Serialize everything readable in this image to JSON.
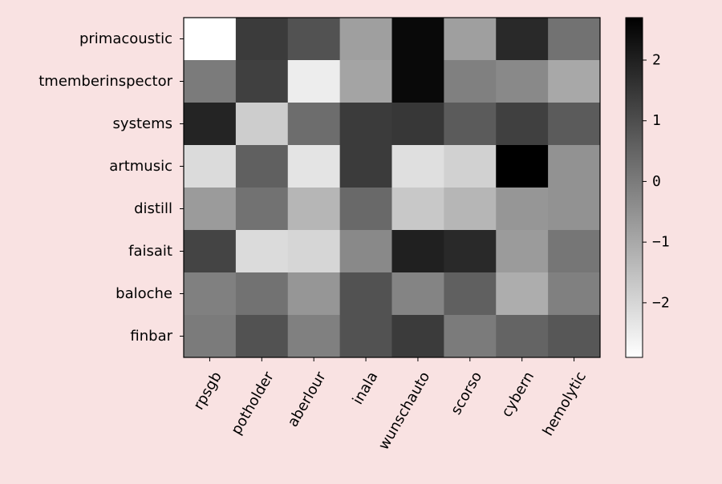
{
  "chart_data": {
    "type": "heatmap",
    "title": "",
    "xlabel": "",
    "ylabel": "",
    "colormap": "gray_r",
    "background": "#f9e2e2",
    "x_categories": [
      "rpsgb",
      "potholder",
      "aberlour",
      "inala",
      "wunschauto",
      "scorso",
      "cybern",
      "hemolytic"
    ],
    "y_categories": [
      "primacoustic",
      "tmemberinspector",
      "systems",
      "artmusic",
      "distill",
      "faisait",
      "baloche",
      "finbar"
    ],
    "values": [
      [
        -2.9,
        1.4,
        0.9,
        -0.8,
        2.5,
        -0.8,
        1.8,
        0.2
      ],
      [
        0.0,
        1.3,
        -2.5,
        -0.9,
        2.5,
        -0.1,
        -0.3,
        -1.0
      ],
      [
        1.9,
        -1.8,
        0.3,
        1.4,
        1.5,
        0.7,
        1.3,
        0.7
      ],
      [
        -2.1,
        0.6,
        -2.3,
        1.4,
        -2.2,
        -1.9,
        2.7,
        -0.5
      ],
      [
        -0.7,
        0.2,
        -1.3,
        0.4,
        -1.7,
        -1.3,
        -0.6,
        -0.5
      ],
      [
        1.2,
        -2.1,
        -2.0,
        -0.3,
        2.0,
        1.8,
        -0.7,
        0.1
      ],
      [
        -0.1,
        0.2,
        -0.6,
        0.9,
        -0.2,
        0.6,
        -1.1,
        -0.1
      ],
      [
        0.0,
        0.9,
        -0.1,
        0.9,
        1.4,
        0.0,
        0.5,
        0.8
      ]
    ],
    "colorbar": {
      "vmin": -2.9,
      "vmax": 2.7,
      "ticks": [
        2,
        1,
        0,
        -1,
        -2
      ],
      "tick_labels": [
        "2",
        "1",
        "0",
        "−1",
        "−2"
      ]
    }
  }
}
